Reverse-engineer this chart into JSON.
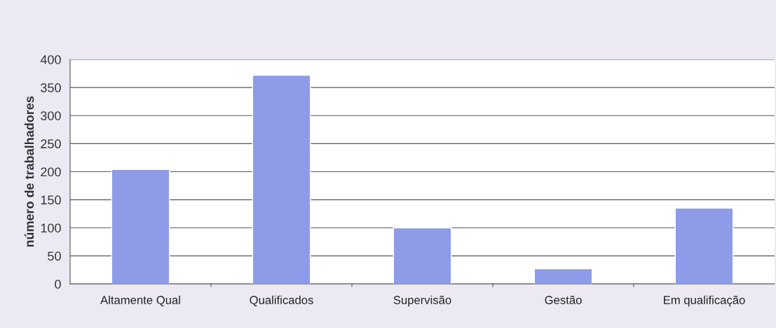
{
  "chart_data": {
    "type": "bar",
    "ylabel": "número de trabalhadores",
    "categories": [
      "Altamente Qual",
      "Qualificados",
      "Supervisão",
      "Gestão",
      "Em qualificação"
    ],
    "values": [
      204,
      372,
      100,
      27,
      135
    ],
    "color": "#8e9be8",
    "ylim": [
      0,
      400
    ],
    "yticks": [
      0,
      50,
      100,
      150,
      200,
      250,
      300,
      350,
      400
    ],
    "grid": "y",
    "legend": false
  }
}
